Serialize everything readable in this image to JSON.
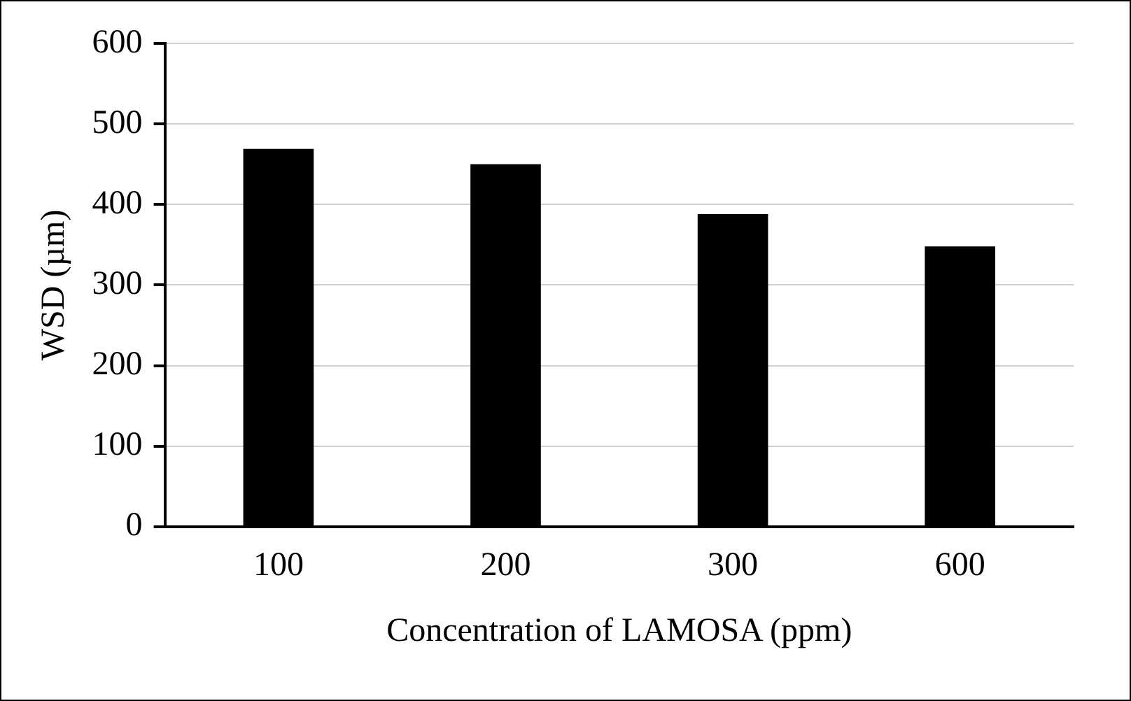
{
  "chart_data": {
    "type": "bar",
    "xlabel": "Concentration of LAMOSA (ppm)",
    "ylabel": "WSD (µm)",
    "categories": [
      "100",
      "200",
      "300",
      "600"
    ],
    "values": [
      469,
      450,
      388,
      348
    ],
    "color": "#000000",
    "ylim": [
      0,
      600
    ],
    "yticks": [
      0,
      100,
      200,
      300,
      400,
      500,
      600
    ],
    "grid": "y",
    "legend": false
  }
}
